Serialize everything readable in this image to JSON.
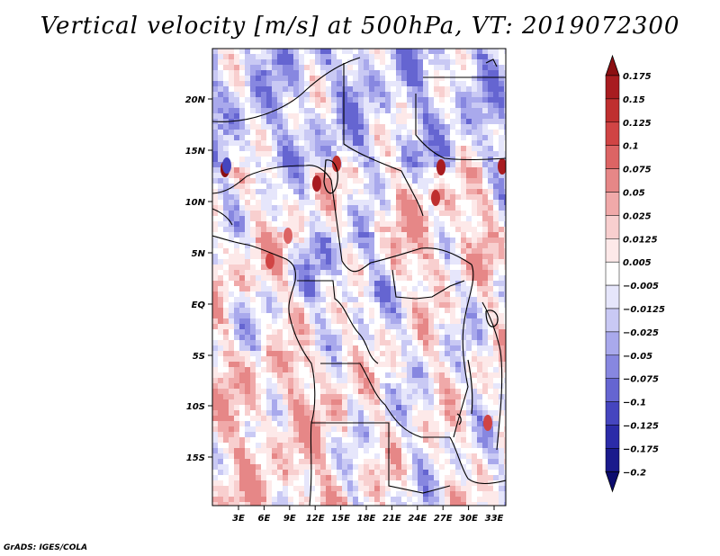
{
  "title": "Vertical velocity [m/s] at 500hPa, VT: 2019072300",
  "footer": "GrADS: IGES/COLA",
  "map": {
    "lat_labels": [
      "20N",
      "15N",
      "10N",
      "5N",
      "EQ",
      "5S",
      "10S",
      "15S"
    ],
    "lon_labels": [
      "3E",
      "6E",
      "9E",
      "12E",
      "15E",
      "18E",
      "21E",
      "24E",
      "27E",
      "30E",
      "33E"
    ]
  },
  "colorbar": {
    "labels": [
      "0.175",
      "0.15",
      "0.125",
      "0.1",
      "0.075",
      "0.05",
      "0.025",
      "0.0125",
      "0.005",
      "−0.005",
      "−0.0125",
      "−0.025",
      "−0.05",
      "−0.075",
      "−0.1",
      "−0.125",
      "−0.175",
      "−0.2"
    ],
    "colors": [
      "#8b0f12",
      "#a81c20",
      "#bf2f2f",
      "#d04444",
      "#dc6464",
      "#e68787",
      "#f0a9a9",
      "#f8cfcf",
      "#fde9e9",
      "#ffffff",
      "#e6e6fb",
      "#c9c9f4",
      "#a9a9ec",
      "#8787e0",
      "#6565d1",
      "#4545bf",
      "#2b2ba8",
      "#1a1a8c",
      "#0c0c6e"
    ]
  }
}
